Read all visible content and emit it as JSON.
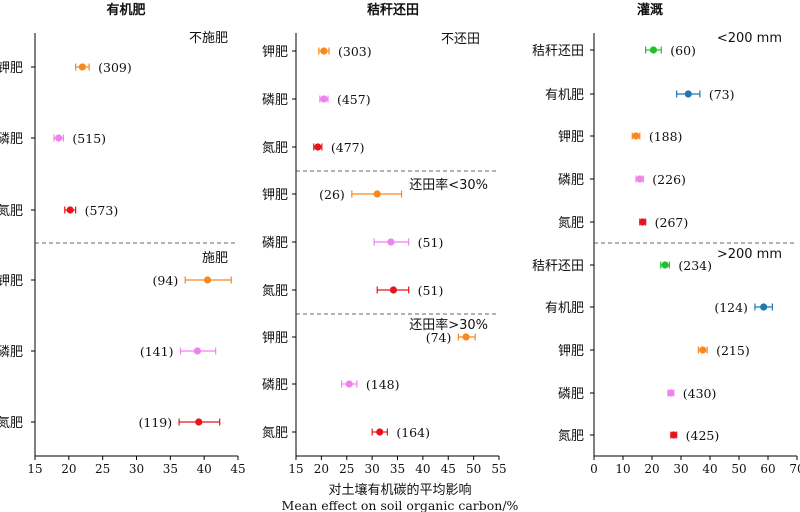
{
  "xlabel_zh": "对土壤有机碳的平均影响",
  "xlabel_en": "Mean effect on soil organic carbon/%",
  "chart_data": [
    {
      "type": "scatter",
      "title": "有机肥",
      "xlim": [
        15,
        45
      ],
      "xticks": [
        15,
        20,
        25,
        30,
        35,
        40,
        45
      ],
      "groups": [
        {
          "label": "不施肥",
          "rows": [
            {
              "category": "钾肥",
              "mean": 22,
              "ci": [
                21,
                23
              ],
              "n": "(309)",
              "color": "#f5891f"
            },
            {
              "category": "磷肥",
              "mean": 18.5,
              "ci": [
                17.8,
                19.2
              ],
              "n": "(515)",
              "color": "#ee82ee"
            },
            {
              "category": "氮肥",
              "mean": 20.2,
              "ci": [
                19.4,
                21
              ],
              "n": "(573)",
              "color": "#e8141b"
            }
          ]
        },
        {
          "label": "施肥",
          "rows": [
            {
              "category": "钾肥",
              "mean": 40.5,
              "ci": [
                37.2,
                44
              ],
              "n": "(94)",
              "color": "#f5891f"
            },
            {
              "category": "磷肥",
              "mean": 39,
              "ci": [
                36.5,
                41.7
              ],
              "n": "(141)",
              "color": "#ee82ee"
            },
            {
              "category": "氮肥",
              "mean": 39.2,
              "ci": [
                36.3,
                42.3
              ],
              "n": "(119)",
              "color": "#e8141b"
            }
          ]
        }
      ]
    },
    {
      "type": "scatter",
      "title": "秸秆还田",
      "xlim": [
        15,
        55
      ],
      "xticks": [
        15,
        20,
        25,
        30,
        35,
        40,
        45,
        50,
        55
      ],
      "groups": [
        {
          "label": "不还田",
          "rows": [
            {
              "category": "钾肥",
              "mean": 20.5,
              "ci": [
                19.5,
                21.5
              ],
              "n": "(303)",
              "color": "#f5891f"
            },
            {
              "category": "磷肥",
              "mean": 20.5,
              "ci": [
                19.7,
                21.3
              ],
              "n": "(457)",
              "color": "#ee82ee"
            },
            {
              "category": "氮肥",
              "mean": 19.3,
              "ci": [
                18.5,
                20.1
              ],
              "n": "(477)",
              "color": "#e8141b"
            }
          ]
        },
        {
          "label": "还田率<30%",
          "rows": [
            {
              "category": "钾肥",
              "mean": 31,
              "ci": [
                26,
                35.8
              ],
              "n": "(26)",
              "color": "#f5891f"
            },
            {
              "category": "磷肥",
              "mean": 33.7,
              "ci": [
                30.4,
                37.2
              ],
              "n": "(51)",
              "color": "#ee82ee"
            },
            {
              "category": "氮肥",
              "mean": 34.2,
              "ci": [
                31,
                37.2
              ],
              "n": "(51)",
              "color": "#e8141b"
            }
          ]
        },
        {
          "label": "还田率>30%",
          "rows": [
            {
              "category": "钾肥",
              "mean": 48.5,
              "ci": [
                47,
                50.3
              ],
              "n": "(74)",
              "color": "#f5891f"
            },
            {
              "category": "磷肥",
              "mean": 25.5,
              "ci": [
                24,
                27
              ],
              "n": "(148)",
              "color": "#ee82ee"
            },
            {
              "category": "氮肥",
              "mean": 31.5,
              "ci": [
                30,
                33
              ],
              "n": "(164)",
              "color": "#e8141b"
            }
          ]
        }
      ]
    },
    {
      "type": "scatter",
      "title": "灌溉",
      "xlim": [
        0,
        70
      ],
      "xticks": [
        0,
        10,
        20,
        30,
        40,
        50,
        60,
        70
      ],
      "groups": [
        {
          "label": "<200 mm",
          "rows": [
            {
              "category": "秸秆还田",
              "mean": 20.5,
              "ci": [
                17.8,
                23.2
              ],
              "n": "(60)",
              "color": "#22c02a"
            },
            {
              "category": "有机肥",
              "mean": 32.5,
              "ci": [
                28.5,
                36.5
              ],
              "n": "(73)",
              "color": "#1f77b4"
            },
            {
              "category": "钾肥",
              "mean": 14.5,
              "ci": [
                13.2,
                15.8
              ],
              "n": "(188)",
              "color": "#f5891f"
            },
            {
              "category": "磷肥",
              "mean": 15.8,
              "ci": [
                14.5,
                17
              ],
              "n": "(226)",
              "color": "#ee82ee"
            },
            {
              "category": "氮肥",
              "mean": 16.8,
              "ci": [
                15.8,
                17.8
              ],
              "n": "(267)",
              "color": "#e8141b"
            }
          ]
        },
        {
          "label": ">200 mm",
          "rows": [
            {
              "category": "秸秆还田",
              "mean": 24.5,
              "ci": [
                23,
                26
              ],
              "n": "(234)",
              "color": "#22c02a"
            },
            {
              "category": "有机肥",
              "mean": 58.5,
              "ci": [
                55.5,
                61.5
              ],
              "n": "(124)",
              "color": "#1f77b4"
            },
            {
              "category": "钾肥",
              "mean": 37.5,
              "ci": [
                36,
                39
              ],
              "n": "(215)",
              "color": "#f5891f"
            },
            {
              "category": "磷肥",
              "mean": 26.5,
              "ci": [
                25.5,
                27.5
              ],
              "n": "(430)",
              "color": "#ee82ee"
            },
            {
              "category": "氮肥",
              "mean": 27.5,
              "ci": [
                26.5,
                28.5
              ],
              "n": "(425)",
              "color": "#e8141b"
            }
          ]
        }
      ]
    }
  ]
}
